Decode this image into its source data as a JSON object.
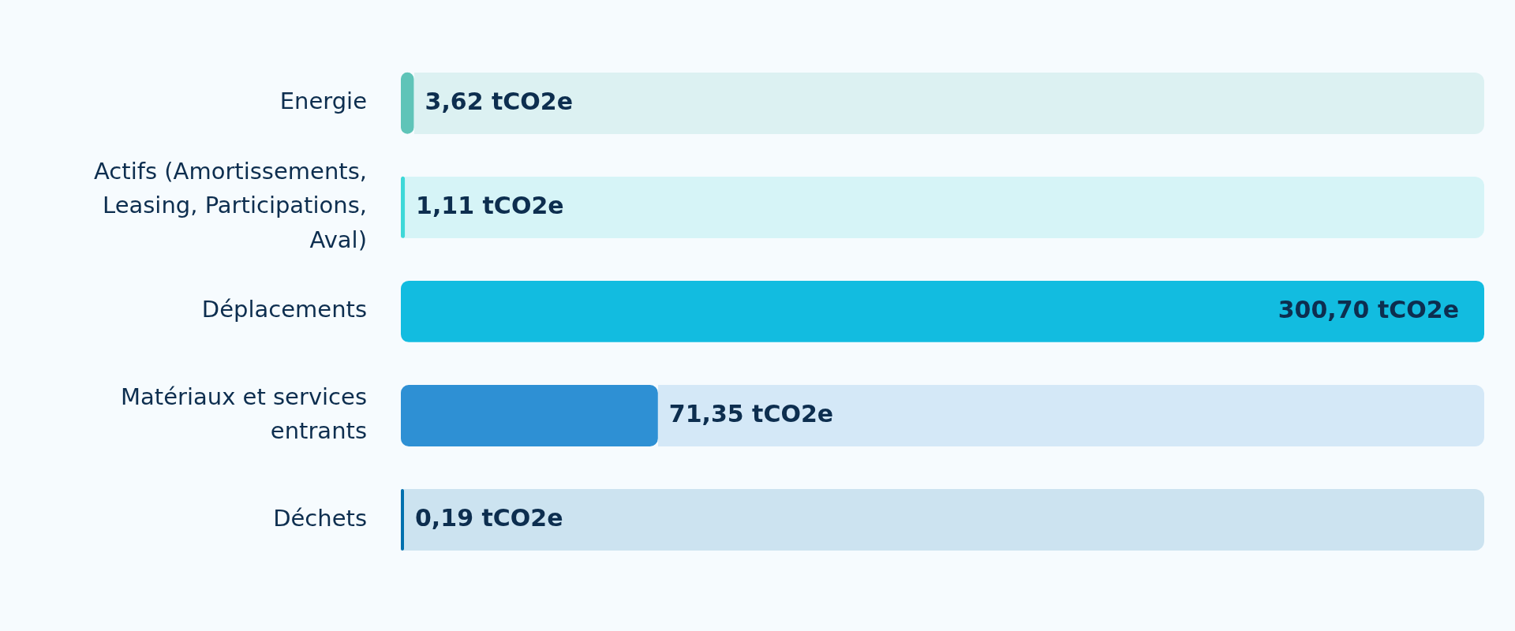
{
  "chart_data": {
    "type": "bar",
    "orientation": "horizontal",
    "categories": [
      "Energie",
      "Actifs (Amortissements, Leasing, Participations, Aval)",
      "Déplacements",
      "Matériaux et services entrants",
      "Déchets"
    ],
    "values": [
      3.62,
      1.11,
      300.7,
      71.35,
      0.19
    ],
    "colors": [
      "#5fc4b8",
      "#3ed8d8",
      "#12bce0",
      "#2e90d4",
      "#0070ae"
    ],
    "value_labels": [
      "3,62 tCO2e",
      "1,11 tCO2e",
      "300,70 tCO2e",
      "71,35 tCO2e",
      "0,19 tCO2e"
    ],
    "tick_labels": "y"
  }
}
